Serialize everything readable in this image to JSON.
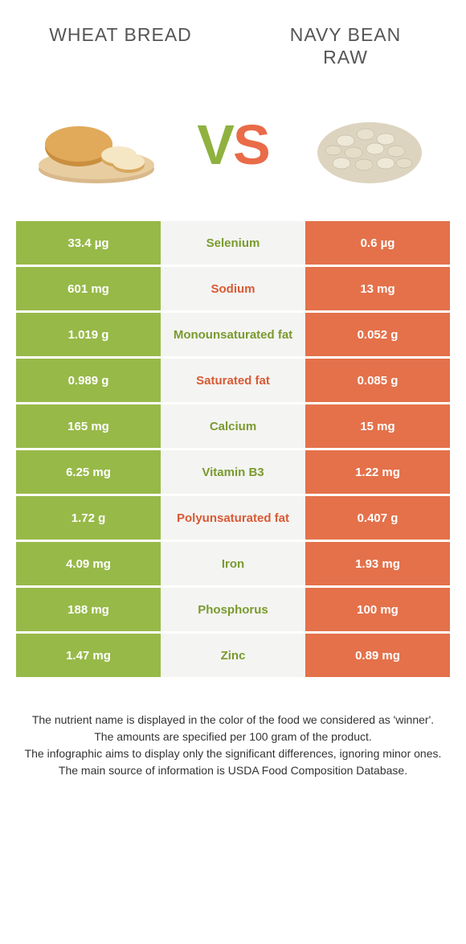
{
  "colors": {
    "green": "#97b948",
    "orange": "#e4714a",
    "mid_bg": "#f4f4f2",
    "green_text": "#7a9a2e",
    "orange_text": "#d85a35"
  },
  "header": {
    "left_title": "Wheat Bread",
    "right_title": "Navy bean raw"
  },
  "vs": {
    "v": "V",
    "s": "S"
  },
  "rows": [
    {
      "left": "33.4 µg",
      "label": "Selenium",
      "right": "0.6 µg",
      "winner": "left"
    },
    {
      "left": "601 mg",
      "label": "Sodium",
      "right": "13 mg",
      "winner": "right"
    },
    {
      "left": "1.019 g",
      "label": "Monounsaturated fat",
      "right": "0.052 g",
      "winner": "left"
    },
    {
      "left": "0.989 g",
      "label": "Saturated fat",
      "right": "0.085 g",
      "winner": "right"
    },
    {
      "left": "165 mg",
      "label": "Calcium",
      "right": "15 mg",
      "winner": "left"
    },
    {
      "left": "6.25 mg",
      "label": "Vitamin B3",
      "right": "1.22 mg",
      "winner": "left"
    },
    {
      "left": "1.72 g",
      "label": "Polyunsaturated fat",
      "right": "0.407 g",
      "winner": "right"
    },
    {
      "left": "4.09 mg",
      "label": "Iron",
      "right": "1.93 mg",
      "winner": "left"
    },
    {
      "left": "188 mg",
      "label": "Phosphorus",
      "right": "100 mg",
      "winner": "left"
    },
    {
      "left": "1.47 mg",
      "label": "Zinc",
      "right": "0.89 mg",
      "winner": "left"
    }
  ],
  "footer": {
    "line1": "The nutrient name is displayed in the color of the food we considered as 'winner'.",
    "line2": "The amounts are specified per 100 gram of the product.",
    "line3": "The infographic aims to display only the significant differences, ignoring minor ones.",
    "line4": "The main source of information is USDA Food Composition Database."
  }
}
